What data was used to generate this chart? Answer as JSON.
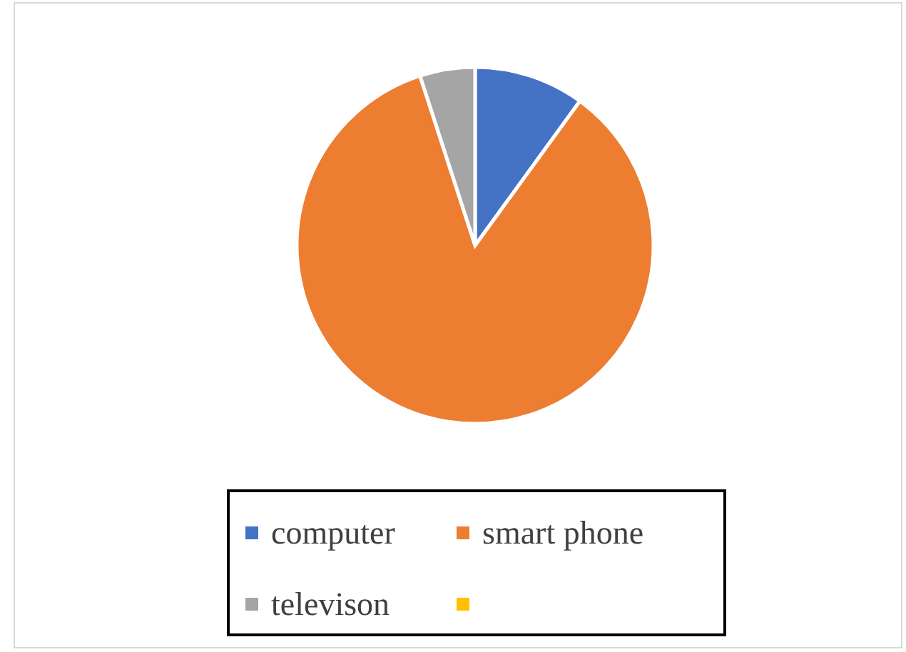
{
  "chart_data": {
    "type": "pie",
    "categories": [
      "computer",
      "smart phone",
      "televison",
      null
    ],
    "values": [
      10,
      85,
      5,
      0
    ],
    "colors": [
      "#4472c4",
      "#ed7d31",
      "#a5a5a5",
      "#ffc000"
    ],
    "legend": "bottom"
  }
}
